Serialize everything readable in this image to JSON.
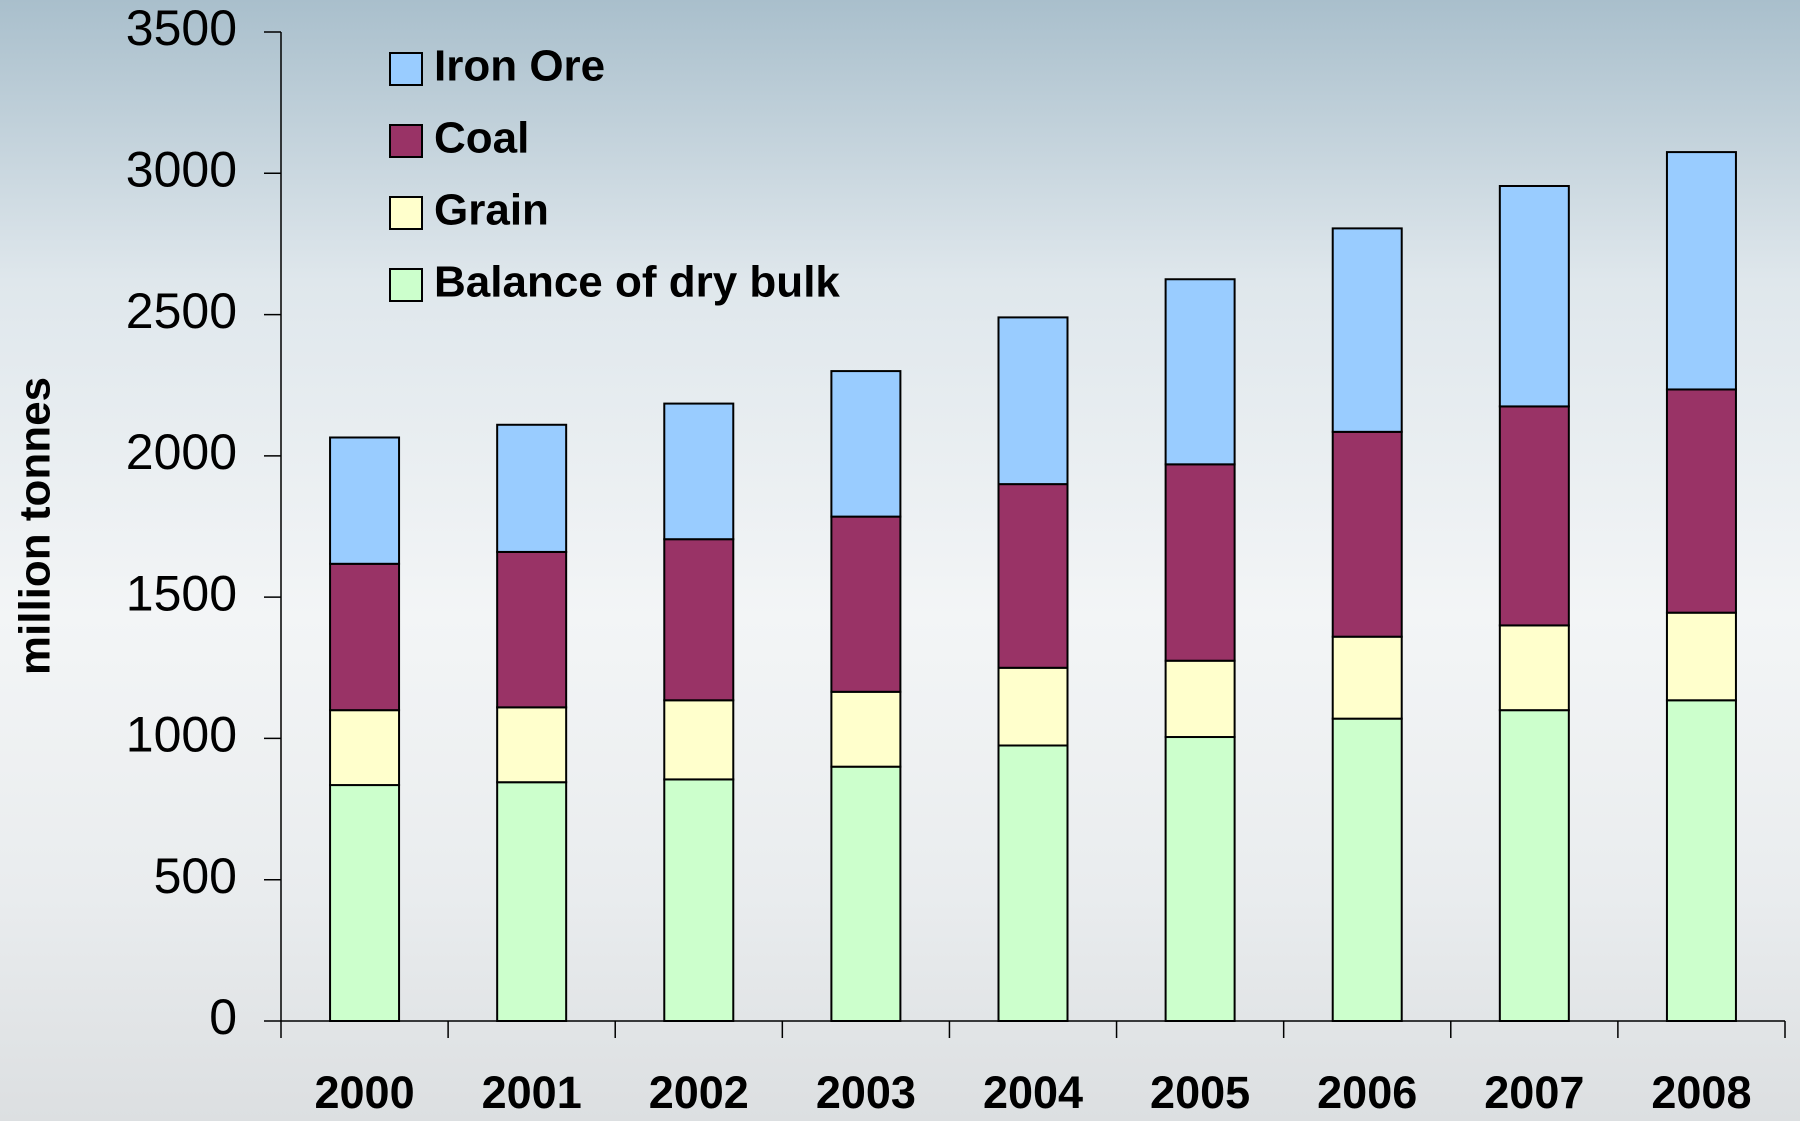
{
  "chart_data": {
    "type": "stacked_bar",
    "y_label": "million tonnes",
    "categories": [
      "2000",
      "2001",
      "2002",
      "2003",
      "2004",
      "2005",
      "2006",
      "2007",
      "2008"
    ],
    "series": [
      {
        "name": "Iron Ore",
        "color": "#99ccff",
        "values": [
          447,
          450,
          480,
          515,
          590,
          655,
          720,
          780,
          840
        ]
      },
      {
        "name": "Coal",
        "color": "#993366",
        "values": [
          518,
          550,
          570,
          620,
          650,
          695,
          725,
          775,
          790
        ]
      },
      {
        "name": "Grain",
        "color": "#ffffcc",
        "values": [
          265,
          265,
          280,
          265,
          275,
          270,
          290,
          300,
          310
        ]
      },
      {
        "name": "Balance of dry bulk",
        "color": "#ccffcc",
        "values": [
          835,
          845,
          855,
          900,
          975,
          1005,
          1070,
          1100,
          1135
        ]
      }
    ],
    "ylim": [
      0,
      3500
    ],
    "yticks": [
      0,
      500,
      1000,
      1500,
      2000,
      2500,
      3000,
      3500
    ],
    "legend": "upper left"
  }
}
